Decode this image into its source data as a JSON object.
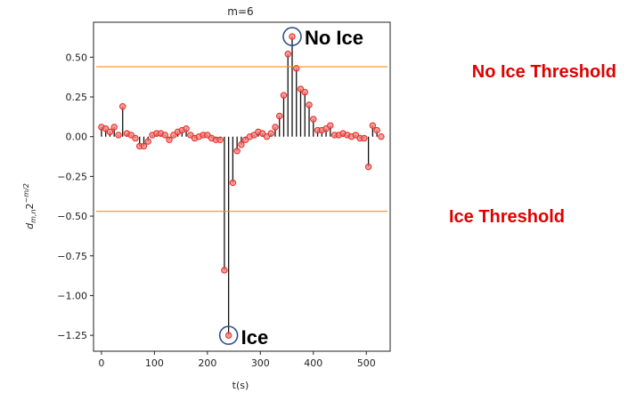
{
  "chart_data": {
    "type": "stem",
    "title": "m=6",
    "xlabel": "t(s)",
    "ylabel_main": "d",
    "ylabel_sub": "m,n",
    "ylabel_mid": "2",
    "ylabel_sup": "−m/2",
    "xlim": [
      -15,
      545
    ],
    "ylim": [
      -1.35,
      0.72
    ],
    "xticks": [
      0,
      100,
      200,
      300,
      400,
      500
    ],
    "yticks": [
      0.5,
      0.25,
      0.0,
      -0.25,
      -0.5,
      -0.75,
      -1.0,
      -1.25
    ],
    "ytick_labels": [
      "0.50",
      "0.25",
      "0.00",
      "−0.25",
      "−0.50",
      "−0.75",
      "−1.00",
      "−1.25"
    ],
    "grid": false,
    "series": [
      {
        "x": [
          0,
          8,
          16,
          24,
          32,
          40,
          48,
          56,
          64,
          72,
          80,
          88,
          96,
          104,
          112,
          120,
          128,
          136,
          144,
          152,
          160,
          168,
          176,
          184,
          192,
          200,
          208,
          216,
          224,
          232,
          240,
          248,
          256,
          264,
          272,
          280,
          288,
          296,
          304,
          312,
          320,
          328,
          336,
          344,
          352,
          360,
          368,
          376,
          384,
          392,
          400,
          408,
          416,
          424,
          432,
          440,
          448,
          456,
          464,
          472,
          480,
          488,
          496,
          504,
          512,
          520,
          528
        ],
        "y": [
          0.06,
          0.05,
          0.03,
          0.06,
          0.01,
          0.19,
          0.02,
          0.01,
          -0.01,
          -0.06,
          -0.06,
          -0.03,
          0.01,
          0.02,
          0.02,
          0.01,
          -0.02,
          0.01,
          0.03,
          0.04,
          0.05,
          0.01,
          -0.01,
          0.0,
          0.01,
          0.01,
          -0.01,
          -0.02,
          -0.02,
          -0.84,
          -1.25,
          -0.29,
          -0.09,
          -0.05,
          -0.02,
          0.0,
          0.01,
          0.03,
          0.02,
          0.0,
          0.02,
          0.06,
          0.13,
          0.26,
          0.52,
          0.63,
          0.43,
          0.3,
          0.28,
          0.2,
          0.11,
          0.04,
          0.04,
          0.05,
          0.07,
          0.01,
          0.01,
          0.02,
          0.01,
          0.0,
          0.01,
          -0.01,
          -0.01,
          -0.19,
          0.07,
          0.04,
          0.0
        ]
      }
    ],
    "thresholds": [
      {
        "label": "No Ice Threshold",
        "value": 0.44,
        "color": "#ff8c1a"
      },
      {
        "label": "Ice Threshold",
        "value": -0.47,
        "color": "#ff8c1a"
      }
    ],
    "annotations": {
      "max_label": "No Ice",
      "min_label": "Ice"
    },
    "colors": {
      "stem": "#111111",
      "marker_fill": "#f08080",
      "marker_edge": "#e8261c",
      "threshold_text": "#e00000",
      "circle": "#2f4f8f"
    }
  }
}
